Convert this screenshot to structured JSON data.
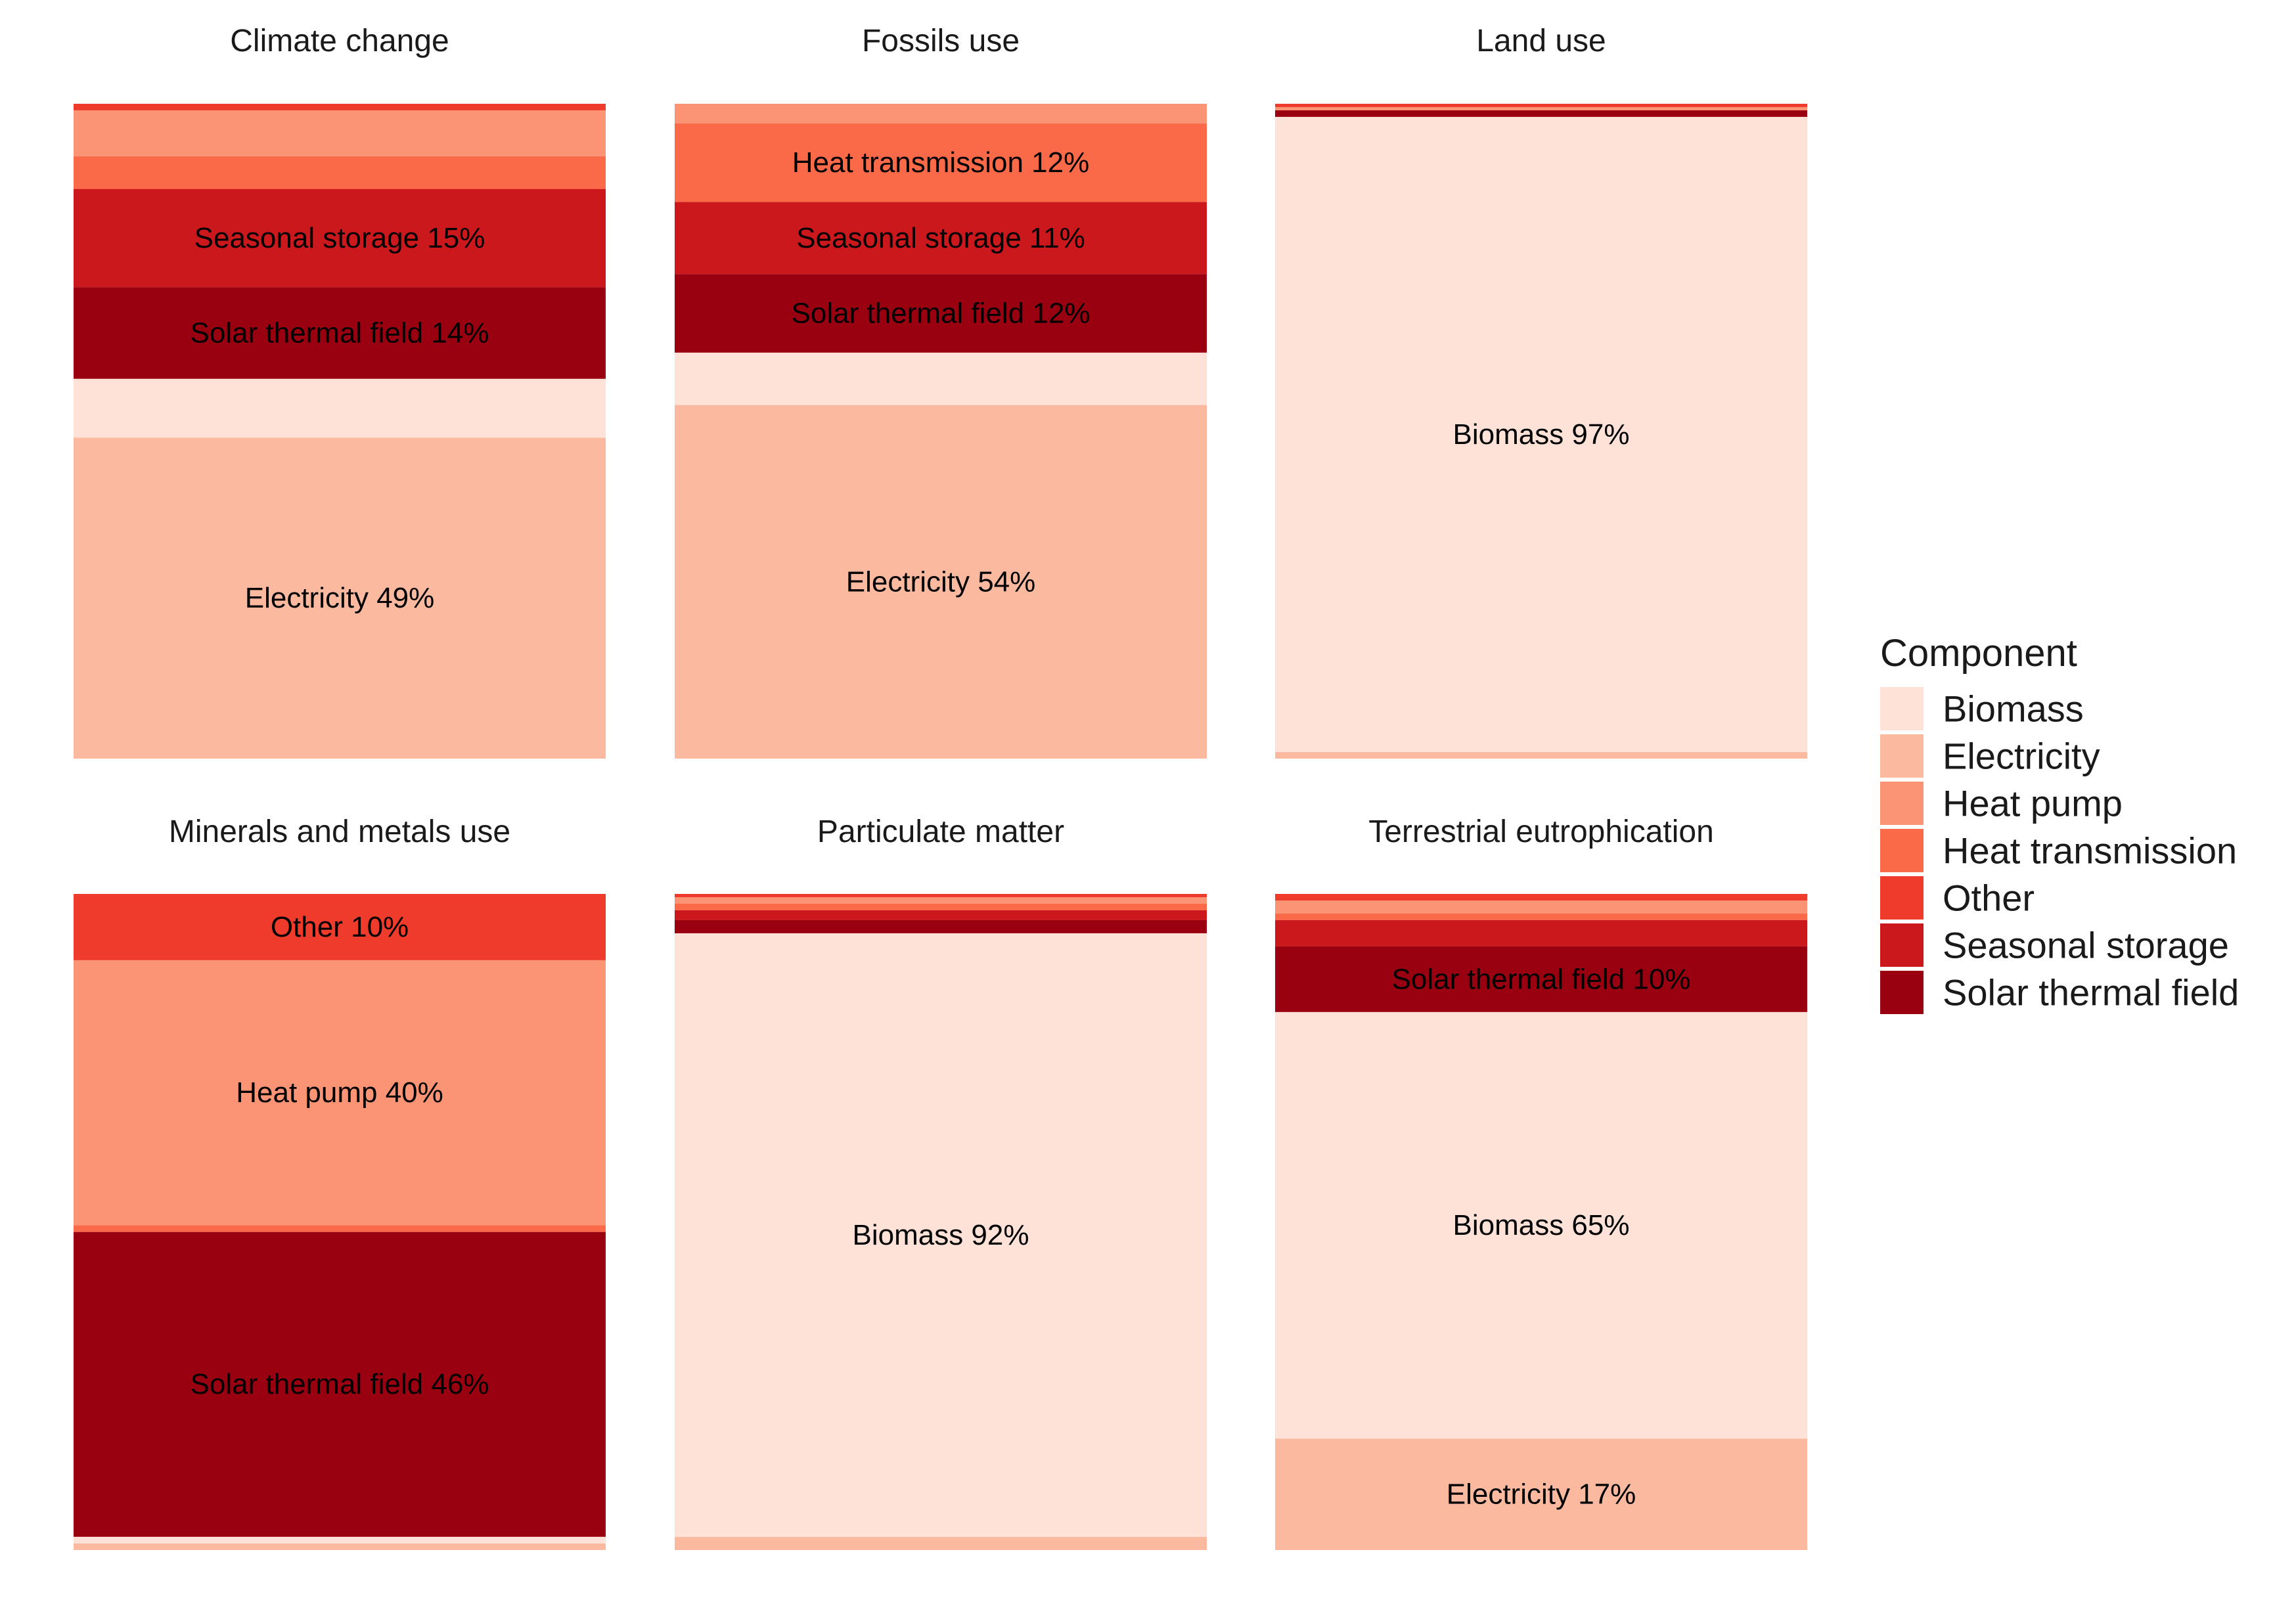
{
  "chart_data": {
    "type": "bar",
    "stacking": "percent",
    "components": [
      "Biomass",
      "Electricity",
      "Heat pump",
      "Heat transmission",
      "Other",
      "Seasonal storage",
      "Solar thermal field"
    ],
    "colors": {
      "Biomass": "#FEE2D7",
      "Electricity": "#FBBAA0",
      "Heat pump": "#FB9375",
      "Heat transmission": "#FA6A49",
      "Other": "#EE3B2B",
      "Seasonal storage": "#CA181D",
      "Solar thermal field": "#990010"
    },
    "panels": [
      {
        "title": "Climate change",
        "values": {
          "Biomass": 9,
          "Electricity": 49,
          "Heat pump": 7,
          "Heat transmission": 5,
          "Other": 1,
          "Seasonal storage": 15,
          "Solar thermal field": 14
        },
        "labels": [
          {
            "component": "Seasonal storage",
            "text": "Seasonal storage 15%"
          },
          {
            "component": "Solar thermal field",
            "text": "Solar thermal field 14%"
          },
          {
            "component": "Electricity",
            "text": "Electricity 49%"
          }
        ]
      },
      {
        "title": "Fossils use",
        "values": {
          "Biomass": 8,
          "Electricity": 54,
          "Heat pump": 3,
          "Heat transmission": 12,
          "Other": 0,
          "Seasonal storage": 11,
          "Solar thermal field": 12
        },
        "labels": [
          {
            "component": "Heat transmission",
            "text": "Heat transmission 12%"
          },
          {
            "component": "Seasonal storage",
            "text": "Seasonal storage 11%"
          },
          {
            "component": "Solar thermal field",
            "text": "Solar thermal field 12%"
          },
          {
            "component": "Electricity",
            "text": "Electricity 54%"
          }
        ]
      },
      {
        "title": "Land use",
        "values": {
          "Biomass": 97,
          "Electricity": 1,
          "Heat pump": 0.5,
          "Heat transmission": 0,
          "Other": 0.5,
          "Seasonal storage": 0,
          "Solar thermal field": 1
        },
        "labels": [
          {
            "component": "Biomass",
            "text": "Biomass 97%"
          }
        ]
      },
      {
        "title": "Minerals and metals use",
        "values": {
          "Biomass": 1,
          "Electricity": 1,
          "Heat pump": 40,
          "Heat transmission": 1,
          "Other": 10,
          "Seasonal storage": 0,
          "Solar thermal field": 46
        },
        "labels": [
          {
            "component": "Other",
            "text": "Other 10%"
          },
          {
            "component": "Heat pump",
            "text": "Heat pump 40%"
          },
          {
            "component": "Solar thermal field",
            "text": "Solar thermal field 46%"
          }
        ]
      },
      {
        "title": "Particulate matter",
        "values": {
          "Biomass": 92,
          "Electricity": 2,
          "Heat pump": 1,
          "Heat transmission": 1,
          "Other": 0.5,
          "Seasonal storage": 1.5,
          "Solar thermal field": 2
        },
        "labels": [
          {
            "component": "Biomass",
            "text": "Biomass 92%"
          }
        ]
      },
      {
        "title": "Terrestrial eutrophication",
        "values": {
          "Biomass": 65,
          "Electricity": 17,
          "Heat pump": 2,
          "Heat transmission": 1,
          "Other": 1,
          "Seasonal storage": 4,
          "Solar thermal field": 10
        },
        "labels": [
          {
            "component": "Solar thermal field",
            "text": "Solar thermal field 10%"
          },
          {
            "component": "Biomass",
            "text": "Biomass 65%"
          },
          {
            "component": "Electricity",
            "text": "Electricity 17%"
          }
        ]
      }
    ],
    "stack_order_bottom_to_top": [
      "Electricity",
      "Biomass",
      "Solar thermal field",
      "Seasonal storage",
      "Heat transmission",
      "Heat pump",
      "Other"
    ],
    "legend": {
      "title": "Component",
      "position": "right"
    },
    "grid": false,
    "axes": false
  }
}
